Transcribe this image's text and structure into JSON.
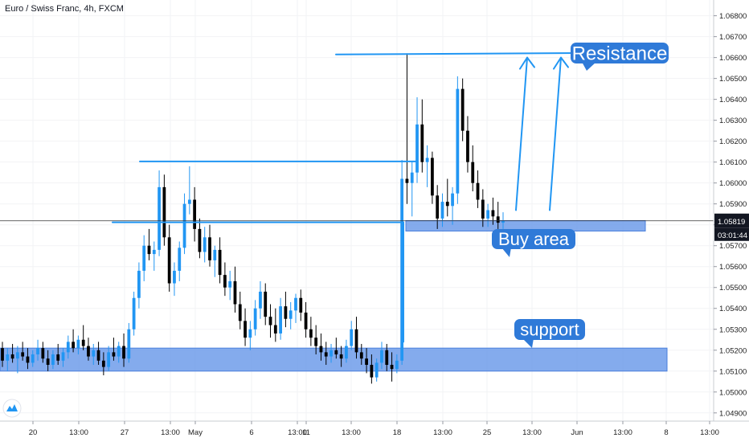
{
  "header": {
    "title": "Euro / Swiss Franc, 4h, FXCM"
  },
  "colors": {
    "up": "#2196f3",
    "down": "#000000",
    "line": "#2196f3",
    "zone": "#6f9cea",
    "bubble": "#2f7ad8",
    "price_badge": "#131722",
    "grid": "#f2f3f5",
    "logo": "#2196f3"
  },
  "icons": {
    "logo": "tradingview-logo-icon"
  },
  "chart_data": {
    "type": "candlestick",
    "title": "Euro / Swiss Franc, 4h, FXCM",
    "ylim": [
      1.0488,
      1.0686
    ],
    "y_ticks": [
      "1.04900",
      "1.05000",
      "1.05100",
      "1.05200",
      "1.05300",
      "1.05400",
      "1.05500",
      "1.05600",
      "1.05700",
      "1.05800",
      "1.05900",
      "1.06000",
      "1.06100",
      "1.06200",
      "1.06300",
      "1.06400",
      "1.06500",
      "1.06600",
      "1.06700",
      "1.06800"
    ],
    "x_ticks": [
      "20",
      "13:00",
      "27",
      "13:00",
      "May",
      "6",
      "13:00",
      "11",
      "13:00",
      "18",
      "13:00",
      "25",
      "13:00",
      "Jun",
      "13:00",
      "8",
      "13:00"
    ],
    "last_price": "1.05819",
    "countdown": "03:01:44",
    "candles": [
      [
        1.0521,
        1.0524,
        1.0512,
        1.0515
      ],
      [
        1.0515,
        1.0521,
        1.051,
        1.0518
      ],
      [
        1.0518,
        1.0523,
        1.0514,
        1.0516
      ],
      [
        1.0516,
        1.0522,
        1.0509,
        1.0519
      ],
      [
        1.0519,
        1.0524,
        1.0515,
        1.0517
      ],
      [
        1.0517,
        1.0521,
        1.0511,
        1.0514
      ],
      [
        1.0514,
        1.052,
        1.0512,
        1.0518
      ],
      [
        1.0518,
        1.0525,
        1.0515,
        1.0521
      ],
      [
        1.0521,
        1.0524,
        1.0514,
        1.0516
      ],
      [
        1.0516,
        1.052,
        1.051,
        1.0513
      ],
      [
        1.0513,
        1.052,
        1.0511,
        1.0518
      ],
      [
        1.0518,
        1.0523,
        1.0513,
        1.0515
      ],
      [
        1.0515,
        1.0521,
        1.0512,
        1.0519
      ],
      [
        1.0519,
        1.0527,
        1.0516,
        1.0524
      ],
      [
        1.0524,
        1.053,
        1.0519,
        1.0521
      ],
      [
        1.0521,
        1.0527,
        1.0518,
        1.0525
      ],
      [
        1.0525,
        1.0532,
        1.052,
        1.0522
      ],
      [
        1.0522,
        1.0526,
        1.0515,
        1.0517
      ],
      [
        1.0517,
        1.0523,
        1.0513,
        1.052
      ],
      [
        1.052,
        1.0524,
        1.0513,
        1.0515
      ],
      [
        1.0515,
        1.0519,
        1.0508,
        1.0512
      ],
      [
        1.0512,
        1.0522,
        1.051,
        1.0519
      ],
      [
        1.0519,
        1.0526,
        1.0515,
        1.0517
      ],
      [
        1.0517,
        1.0524,
        1.0514,
        1.0522
      ],
      [
        1.0522,
        1.0528,
        1.0512,
        1.0516
      ],
      [
        1.0516,
        1.0533,
        1.0514,
        1.053
      ],
      [
        1.053,
        1.0548,
        1.0527,
        1.0545
      ],
      [
        1.0545,
        1.0562,
        1.054,
        1.0558
      ],
      [
        1.0558,
        1.0575,
        1.0553,
        1.057
      ],
      [
        1.057,
        1.0578,
        1.0563,
        1.0566
      ],
      [
        1.0566,
        1.0572,
        1.0558,
        1.0568
      ],
      [
        1.0568,
        1.0606,
        1.0565,
        1.0598
      ],
      [
        1.0598,
        1.0604,
        1.057,
        1.0574
      ],
      [
        1.0574,
        1.058,
        1.0548,
        1.0552
      ],
      [
        1.0552,
        1.0562,
        1.0546,
        1.0558
      ],
      [
        1.0558,
        1.0572,
        1.0553,
        1.0569
      ],
      [
        1.0569,
        1.0595,
        1.0566,
        1.059
      ],
      [
        1.059,
        1.0608,
        1.0585,
        1.0592
      ],
      [
        1.0592,
        1.0598,
        1.0572,
        1.0578
      ],
      [
        1.0578,
        1.0583,
        1.0564,
        1.0567
      ],
      [
        1.0567,
        1.0579,
        1.0562,
        1.0574
      ],
      [
        1.0574,
        1.058,
        1.056,
        1.0563
      ],
      [
        1.0563,
        1.057,
        1.0555,
        1.0568
      ],
      [
        1.0568,
        1.0574,
        1.0552,
        1.0556
      ],
      [
        1.0556,
        1.0562,
        1.0546,
        1.055
      ],
      [
        1.055,
        1.0558,
        1.0544,
        1.0553
      ],
      [
        1.0553,
        1.056,
        1.0538,
        1.0542
      ],
      [
        1.0542,
        1.0548,
        1.053,
        1.0534
      ],
      [
        1.0534,
        1.054,
        1.0522,
        1.0526
      ],
      [
        1.0526,
        1.0534,
        1.052,
        1.053
      ],
      [
        1.053,
        1.0544,
        1.0527,
        1.054
      ],
      [
        1.054,
        1.0553,
        1.0535,
        1.0548
      ],
      [
        1.0548,
        1.0552,
        1.0532,
        1.0536
      ],
      [
        1.0536,
        1.0542,
        1.0526,
        1.0532
      ],
      [
        1.0532,
        1.054,
        1.0524,
        1.0528
      ],
      [
        1.0528,
        1.0545,
        1.0525,
        1.0541
      ],
      [
        1.0541,
        1.0548,
        1.0531,
        1.0535
      ],
      [
        1.0535,
        1.0543,
        1.053,
        1.0539
      ],
      [
        1.0539,
        1.0547,
        1.0533,
        1.0545
      ],
      [
        1.0545,
        1.0549,
        1.0534,
        1.0538
      ],
      [
        1.0538,
        1.0543,
        1.0526,
        1.053
      ],
      [
        1.053,
        1.0536,
        1.0522,
        1.0526
      ],
      [
        1.0526,
        1.0532,
        1.0518,
        1.0522
      ],
      [
        1.0522,
        1.0528,
        1.0515,
        1.0519
      ],
      [
        1.0519,
        1.0524,
        1.0513,
        1.0517
      ],
      [
        1.0517,
        1.0523,
        1.0514,
        1.052
      ],
      [
        1.052,
        1.0526,
        1.0516,
        1.0518
      ],
      [
        1.0518,
        1.0522,
        1.0512,
        1.0516
      ],
      [
        1.0516,
        1.0525,
        1.0514,
        1.0522
      ],
      [
        1.0522,
        1.0534,
        1.052,
        1.053
      ],
      [
        1.053,
        1.0536,
        1.0516,
        1.0519
      ],
      [
        1.0519,
        1.0523,
        1.0513,
        1.0516
      ],
      [
        1.0516,
        1.0521,
        1.0509,
        1.0513
      ],
      [
        1.0513,
        1.0518,
        1.0504,
        1.0507
      ],
      [
        1.0507,
        1.0516,
        1.0505,
        1.0514
      ],
      [
        1.0514,
        1.0524,
        1.0511,
        1.052
      ],
      [
        1.052,
        1.0523,
        1.051,
        1.0513
      ],
      [
        1.0513,
        1.0519,
        1.0505,
        1.0511
      ],
      [
        1.0511,
        1.0518,
        1.0509,
        1.0515
      ],
      [
        1.0515,
        1.0611,
        1.0513,
        1.0602
      ],
      [
        1.0602,
        1.0662,
        1.059,
        1.06
      ],
      [
        1.06,
        1.061,
        1.0584,
        1.0605
      ],
      [
        1.0605,
        1.0641,
        1.06,
        1.0628
      ],
      [
        1.0628,
        1.064,
        1.0605,
        1.061
      ],
      [
        1.061,
        1.0618,
        1.0598,
        1.0612
      ],
      [
        1.0612,
        1.0615,
        1.059,
        1.0594
      ],
      [
        1.0594,
        1.0599,
        1.0578,
        1.0583
      ],
      [
        1.0583,
        1.0595,
        1.0579,
        1.0591
      ],
      [
        1.0591,
        1.0602,
        1.0584,
        1.0589
      ],
      [
        1.0589,
        1.0598,
        1.058,
        1.0595
      ],
      [
        1.0595,
        1.0651,
        1.059,
        1.0645
      ],
      [
        1.0645,
        1.065,
        1.062,
        1.0625
      ],
      [
        1.0625,
        1.0632,
        1.0605,
        1.061
      ],
      [
        1.061,
        1.0618,
        1.0596,
        1.06
      ],
      [
        1.06,
        1.0606,
        1.0588,
        1.0592
      ],
      [
        1.0592,
        1.0597,
        1.0579,
        1.0583
      ],
      [
        1.0583,
        1.059,
        1.0579,
        1.0587
      ],
      [
        1.0587,
        1.0593,
        1.058,
        1.0584
      ],
      [
        1.0584,
        1.0591,
        1.0578,
        1.0581
      ],
      [
        1.0581,
        1.0586,
        1.0578,
        1.0582
      ]
    ],
    "annotations": [
      {
        "type": "bubble",
        "text": "Resistance"
      },
      {
        "type": "bubble",
        "text": "Buy area"
      },
      {
        "type": "bubble",
        "text": "support"
      }
    ]
  }
}
